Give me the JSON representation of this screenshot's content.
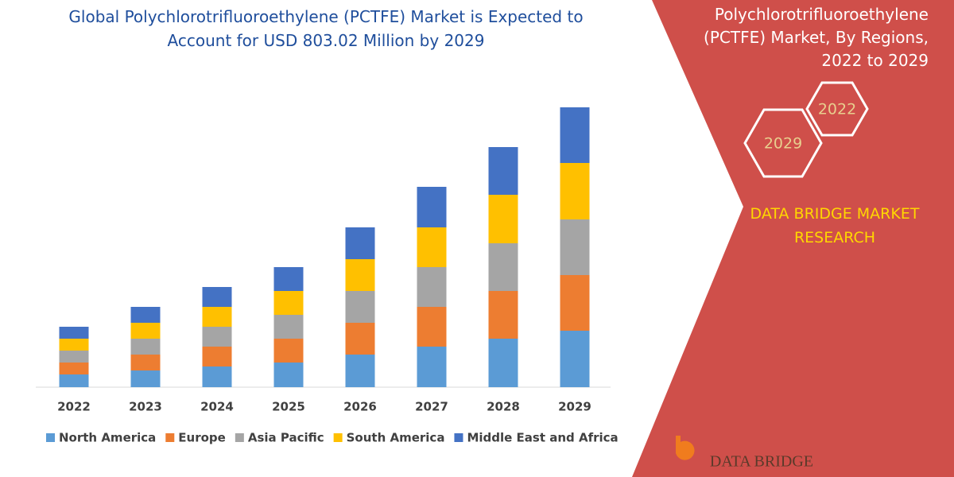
{
  "chart_data": {
    "type": "stacked-bar",
    "title": "Global Polychlorotrifluoroethylene (PCTFE) Market is Expected to Account for USD 803.02 Million by 2029",
    "categories": [
      "2022",
      "2023",
      "2024",
      "2025",
      "2026",
      "2027",
      "2028",
      "2029"
    ],
    "series": [
      {
        "name": "North America",
        "color": "#5b9bd5",
        "values": [
          16,
          21,
          26,
          31,
          41,
          51,
          61,
          71
        ]
      },
      {
        "name": "Europe",
        "color": "#ed7d31",
        "values": [
          15,
          20,
          25,
          30,
          40,
          50,
          60,
          70
        ]
      },
      {
        "name": "Asia Pacific",
        "color": "#a5a5a5",
        "values": [
          15,
          20,
          25,
          30,
          40,
          50,
          60,
          70
        ]
      },
      {
        "name": "South America",
        "color": "#ffc000",
        "values": [
          15,
          20,
          25,
          30,
          40,
          50,
          61,
          71
        ]
      },
      {
        "name": "Middle East and Africa",
        "color": "#4472c4",
        "values": [
          15,
          20,
          25,
          30,
          40,
          51,
          60,
          70
        ]
      }
    ],
    "ylim": [
      0,
      352
    ],
    "legend": "bottom"
  },
  "panel": {
    "title": "Polychlorotrifluoroethylene (PCTFE) Market, By Regions, 2022 to 2029",
    "hexagons": [
      "2022",
      "2029"
    ],
    "brand": "DATA BRIDGE MARKET RESEARCH",
    "logo": "DATA BRIDGE"
  }
}
